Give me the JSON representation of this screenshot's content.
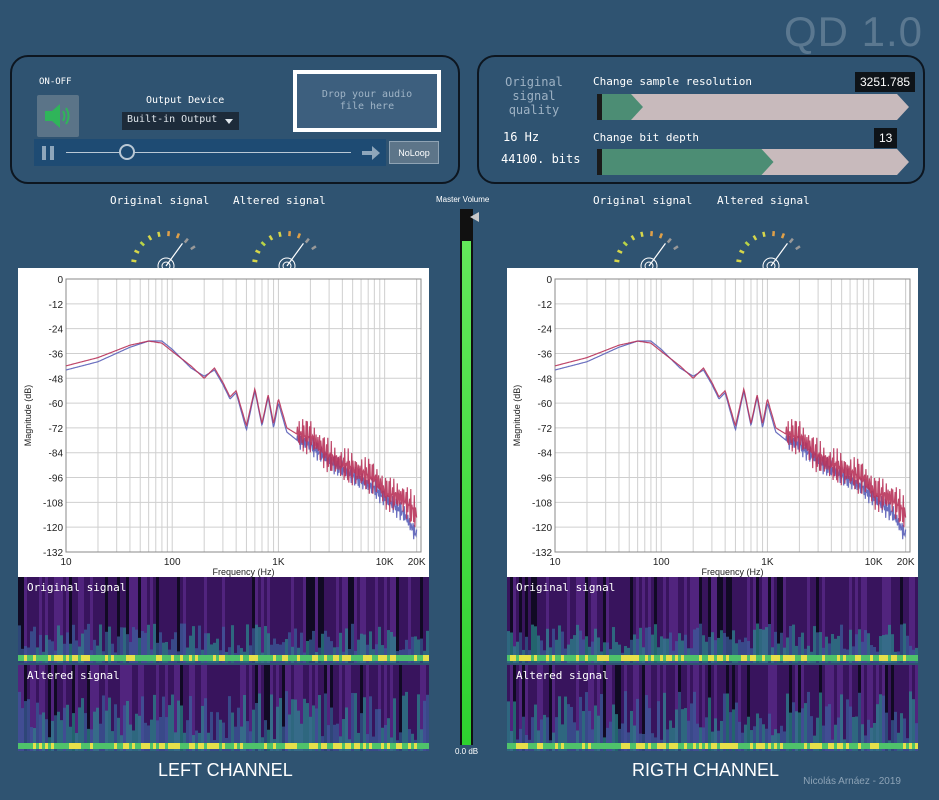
{
  "app": {
    "title": "QD 1.0",
    "credit": "Nicolás Arnáez - 2019"
  },
  "player": {
    "onoff_label": "ON-OFF",
    "speaker_icon": "speaker-icon",
    "output_device_label": "Output Device",
    "output_device_value": "Built-in Output",
    "drop_zone_text": "Drop your audio file here",
    "loop_button": "NoLoop"
  },
  "quality": {
    "label": "Original signal quality",
    "hz": "16 Hz",
    "bits": "44100. bits",
    "resolution_label": "Change sample resolution",
    "resolution_value": "3251.785",
    "resolution_fraction": 0.1,
    "bitdepth_label": "Change bit depth",
    "bitdepth_value": "13",
    "bitdepth_fraction": 0.55
  },
  "meters": {
    "original_label": "Original signal",
    "altered_label": "Altered signal"
  },
  "master": {
    "label": "Master Volume",
    "db": "0.0 dB",
    "level": 0.94
  },
  "channels": {
    "left": "LEFT CHANNEL",
    "right": "RIGTH CHANNEL"
  },
  "spectrogram": {
    "original_label": "Original signal",
    "altered_label": "Altered signal"
  },
  "colors": {
    "original_series": "#5a5fb8",
    "altered_series": "#b8335a",
    "slider_fill": "#4c8d74"
  },
  "chart_data": [
    {
      "type": "line",
      "xlabel": "Frequency (Hz)",
      "ylabel": "Magnitude (dB)",
      "xscale": "log",
      "xlim": [
        10,
        22000
      ],
      "ylim": [
        -132,
        0
      ],
      "x_ticks": [
        10,
        100,
        1000,
        10000,
        20000
      ],
      "x_tick_labels": [
        "10",
        "100",
        "1K",
        "10K",
        "20K"
      ],
      "y_ticks": [
        0,
        -12,
        -24,
        -36,
        -48,
        -60,
        -72,
        -84,
        -96,
        -108,
        -120,
        -132
      ],
      "grid": true,
      "series": [
        {
          "color": "#5a5fb8",
          "x": [
            10,
            20,
            40,
            60,
            80,
            100,
            150,
            200,
            250,
            300,
            350,
            400,
            500,
            600,
            700,
            800,
            900,
            1000,
            1200,
            1500,
            2000,
            3000,
            5000,
            8000,
            10000,
            15000,
            20000
          ],
          "y": [
            -44,
            -40,
            -33,
            -30,
            -30,
            -34,
            -43,
            -47,
            -44,
            -51,
            -58,
            -55,
            -73,
            -54,
            -71,
            -57,
            -72,
            -60,
            -74,
            -78,
            -80,
            -88,
            -95,
            -101,
            -106,
            -113,
            -124
          ]
        },
        {
          "color": "#b8335a",
          "x": [
            10,
            20,
            40,
            60,
            80,
            100,
            150,
            200,
            250,
            300,
            350,
            400,
            500,
            600,
            700,
            800,
            900,
            1000,
            1200,
            1500,
            2000,
            3000,
            5000,
            8000,
            10000,
            15000,
            20000
          ],
          "y": [
            -42,
            -38,
            -32,
            -30,
            -31,
            -35,
            -42,
            -48,
            -43,
            -50,
            -57,
            -54,
            -71,
            -53,
            -70,
            -56,
            -70,
            -58,
            -72,
            -75,
            -76,
            -86,
            -92,
            -96,
            -103,
            -106,
            -114
          ]
        }
      ]
    },
    {
      "type": "line",
      "xlabel": "Frequency (Hz)",
      "ylabel": "Magnitude (dB)",
      "xscale": "log",
      "xlim": [
        10,
        22000
      ],
      "ylim": [
        -132,
        0
      ],
      "x_ticks": [
        10,
        100,
        1000,
        10000,
        20000
      ],
      "x_tick_labels": [
        "10",
        "100",
        "1K",
        "10K",
        "20K"
      ],
      "y_ticks": [
        0,
        -12,
        -24,
        -36,
        -48,
        -60,
        -72,
        -84,
        -96,
        -108,
        -120,
        -132
      ],
      "grid": true,
      "series": [
        {
          "color": "#5a5fb8",
          "x": [
            10,
            20,
            40,
            60,
            80,
            100,
            150,
            200,
            250,
            300,
            350,
            400,
            500,
            600,
            700,
            800,
            900,
            1000,
            1200,
            1500,
            2000,
            3000,
            5000,
            8000,
            10000,
            15000,
            20000
          ],
          "y": [
            -44,
            -40,
            -33,
            -30,
            -30,
            -34,
            -43,
            -47,
            -44,
            -51,
            -58,
            -55,
            -73,
            -54,
            -71,
            -57,
            -72,
            -60,
            -74,
            -78,
            -80,
            -88,
            -95,
            -101,
            -106,
            -113,
            -124
          ]
        },
        {
          "color": "#b8335a",
          "x": [
            10,
            20,
            40,
            60,
            80,
            100,
            150,
            200,
            250,
            300,
            350,
            400,
            500,
            600,
            700,
            800,
            900,
            1000,
            1200,
            1500,
            2000,
            3000,
            5000,
            8000,
            10000,
            15000,
            20000
          ],
          "y": [
            -42,
            -38,
            -32,
            -30,
            -31,
            -35,
            -42,
            -48,
            -43,
            -50,
            -57,
            -54,
            -71,
            -53,
            -70,
            -56,
            -70,
            -58,
            -72,
            -75,
            -76,
            -86,
            -92,
            -96,
            -103,
            -106,
            -114
          ]
        }
      ]
    }
  ]
}
